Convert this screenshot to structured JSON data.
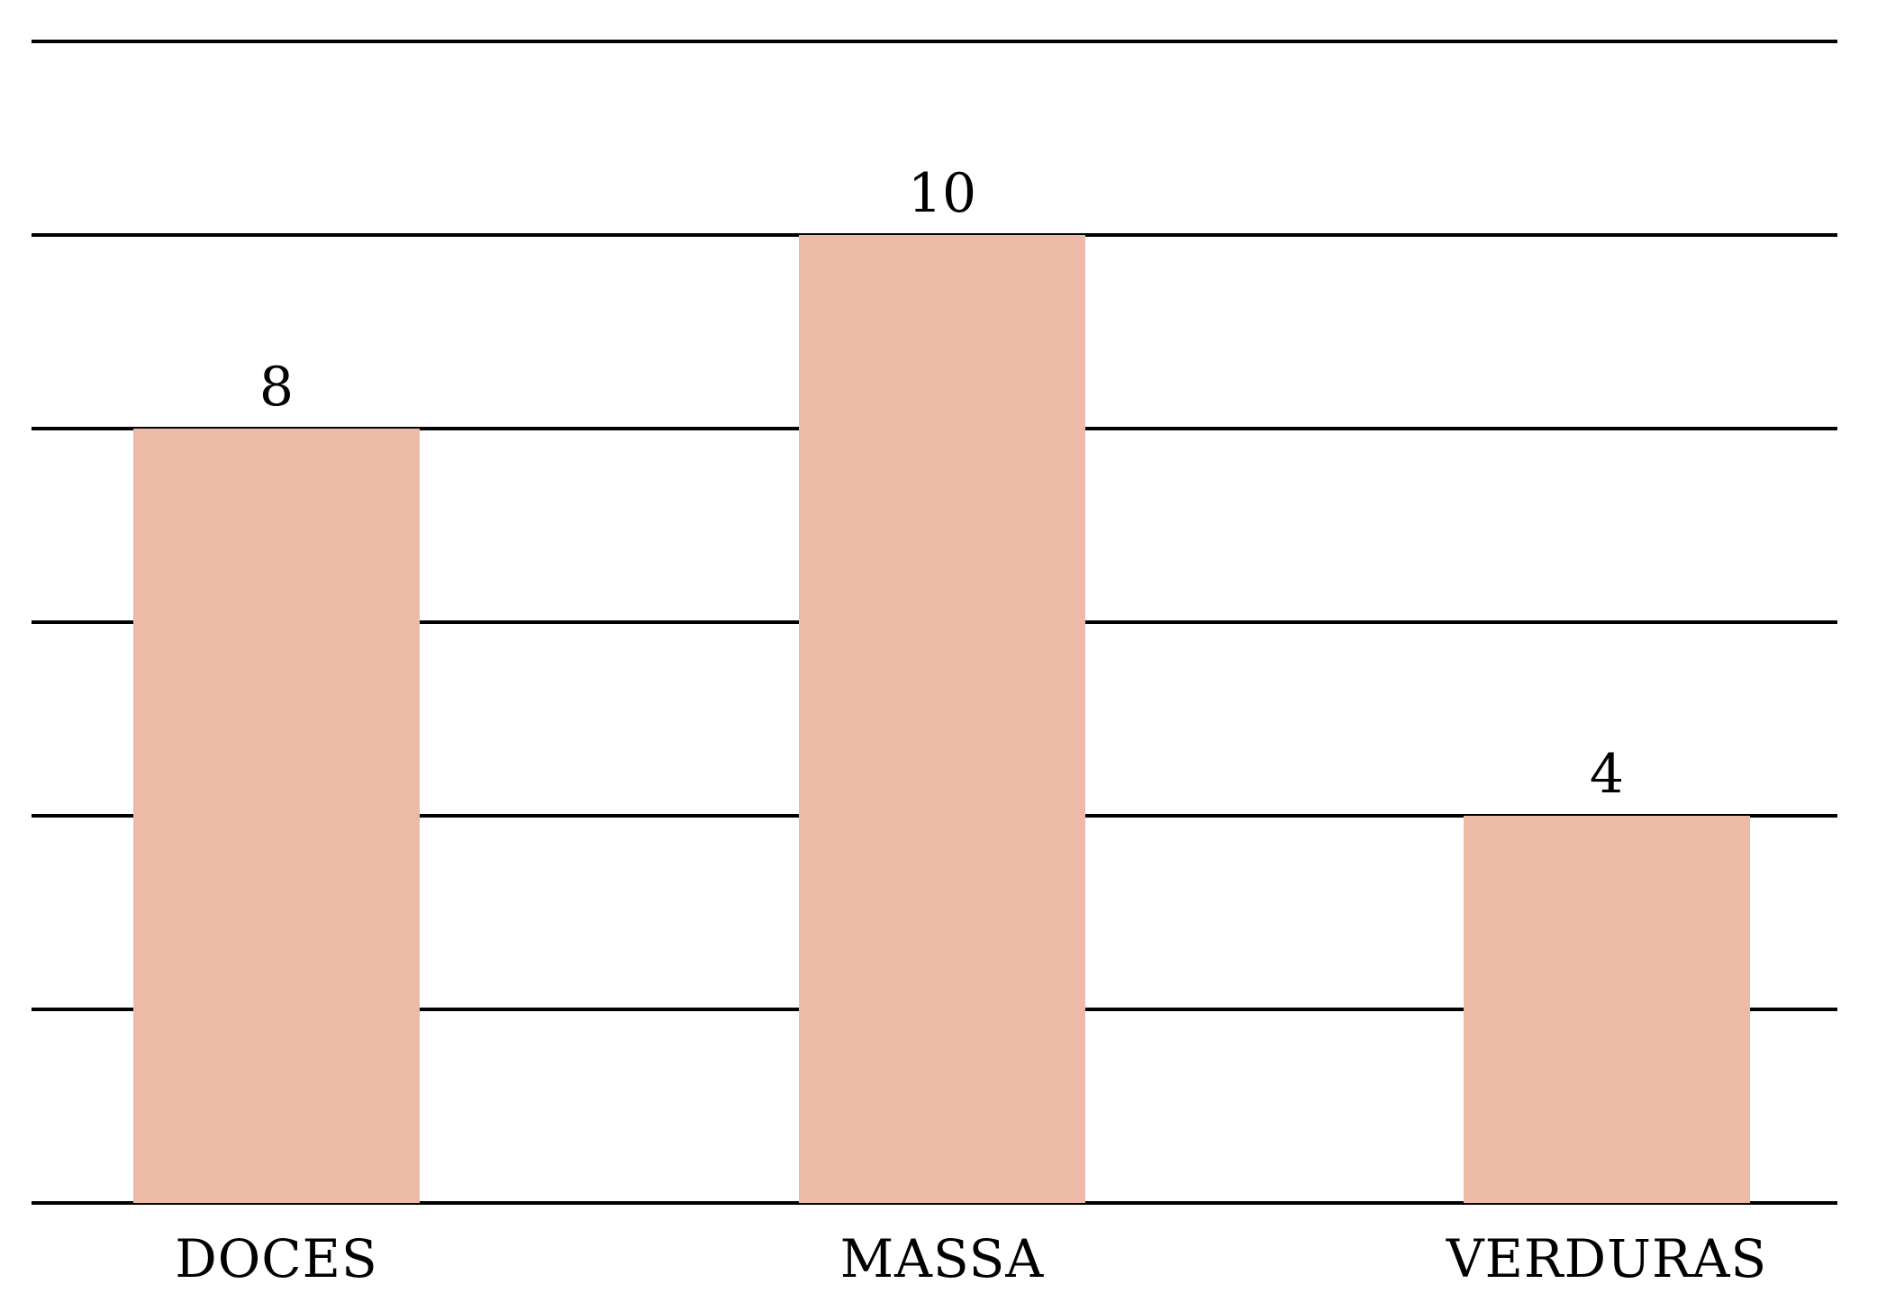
{
  "chart_data": {
    "type": "bar",
    "categories": [
      "DOCES",
      "MASSA",
      "VERDURAS"
    ],
    "values": [
      8,
      10,
      4
    ],
    "data_labels": [
      "8",
      "10",
      "4"
    ],
    "ylim": [
      0,
      12
    ],
    "gridlines": [
      0,
      2,
      4,
      6,
      8,
      10,
      12
    ],
    "grid": true,
    "title": "",
    "xlabel": "",
    "ylabel": "",
    "colors": {
      "bar": "#EDBAA8",
      "grid": "#000000",
      "text": "#000000"
    }
  }
}
